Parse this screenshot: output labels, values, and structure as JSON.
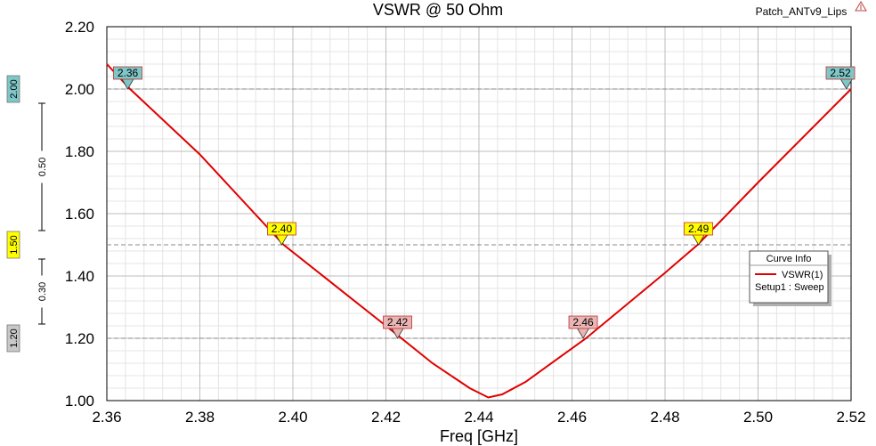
{
  "project_name": "Patch_ANTv9_Lips",
  "chart_data": {
    "type": "line",
    "title": "VSWR @ 50 Ohm",
    "xlabel": "Freq [GHz]",
    "ylabel": "",
    "xlim": [
      2.36,
      2.52
    ],
    "ylim": [
      1.0,
      2.2
    ],
    "x_ticks": [
      "2.36",
      "2.38",
      "2.40",
      "2.42",
      "2.44",
      "2.46",
      "2.48",
      "2.50",
      "2.52"
    ],
    "y_ticks": [
      "1.00",
      "1.20",
      "1.40",
      "1.60",
      "1.80",
      "2.00",
      "2.20"
    ],
    "grid": true,
    "series": [
      {
        "name": "VSWR(1)",
        "color": "#e00000",
        "x": [
          2.36,
          2.365,
          2.38,
          2.398,
          2.42,
          2.43,
          2.438,
          2.442,
          2.445,
          2.45,
          2.463,
          2.48,
          2.487,
          2.5,
          2.52
        ],
        "y": [
          2.08,
          2.0,
          1.79,
          1.5,
          1.24,
          1.12,
          1.04,
          1.01,
          1.02,
          1.06,
          1.2,
          1.41,
          1.5,
          1.7,
          2.0
        ]
      }
    ],
    "reference_lines": [
      {
        "y": 2.0,
        "label": "2.00",
        "color": "#7fc6c6"
      },
      {
        "y": 1.5,
        "label": "1.50",
        "color": "#ffff00"
      },
      {
        "y": 1.2,
        "label": "1.20",
        "color": "#c8c8c8"
      }
    ],
    "deltas": [
      {
        "from": 1.5,
        "to": 2.0,
        "label": "0.50"
      },
      {
        "from": 1.2,
        "to": 1.5,
        "label": "0.30"
      }
    ],
    "markers": [
      {
        "label": "2.36",
        "x": 2.3645,
        "y": 2.0,
        "color": "#7fc6c6"
      },
      {
        "label": "2.40",
        "x": 2.3976,
        "y": 1.5,
        "color": "#ffff00"
      },
      {
        "label": "2.42",
        "x": 2.4225,
        "y": 1.2,
        "color": "#e8b4b4"
      },
      {
        "label": "2.46",
        "x": 2.4624,
        "y": 1.2,
        "color": "#e8b4b4"
      },
      {
        "label": "2.49",
        "x": 2.4872,
        "y": 1.5,
        "color": "#ffff00"
      },
      {
        "label": "2.52",
        "x": 2.519,
        "y": 2.0,
        "color": "#7fc6c6"
      }
    ],
    "legend": {
      "title": "Curve Info",
      "entry": "VSWR(1)",
      "sub": "Setup1 : Sweep",
      "placement": "right"
    }
  }
}
